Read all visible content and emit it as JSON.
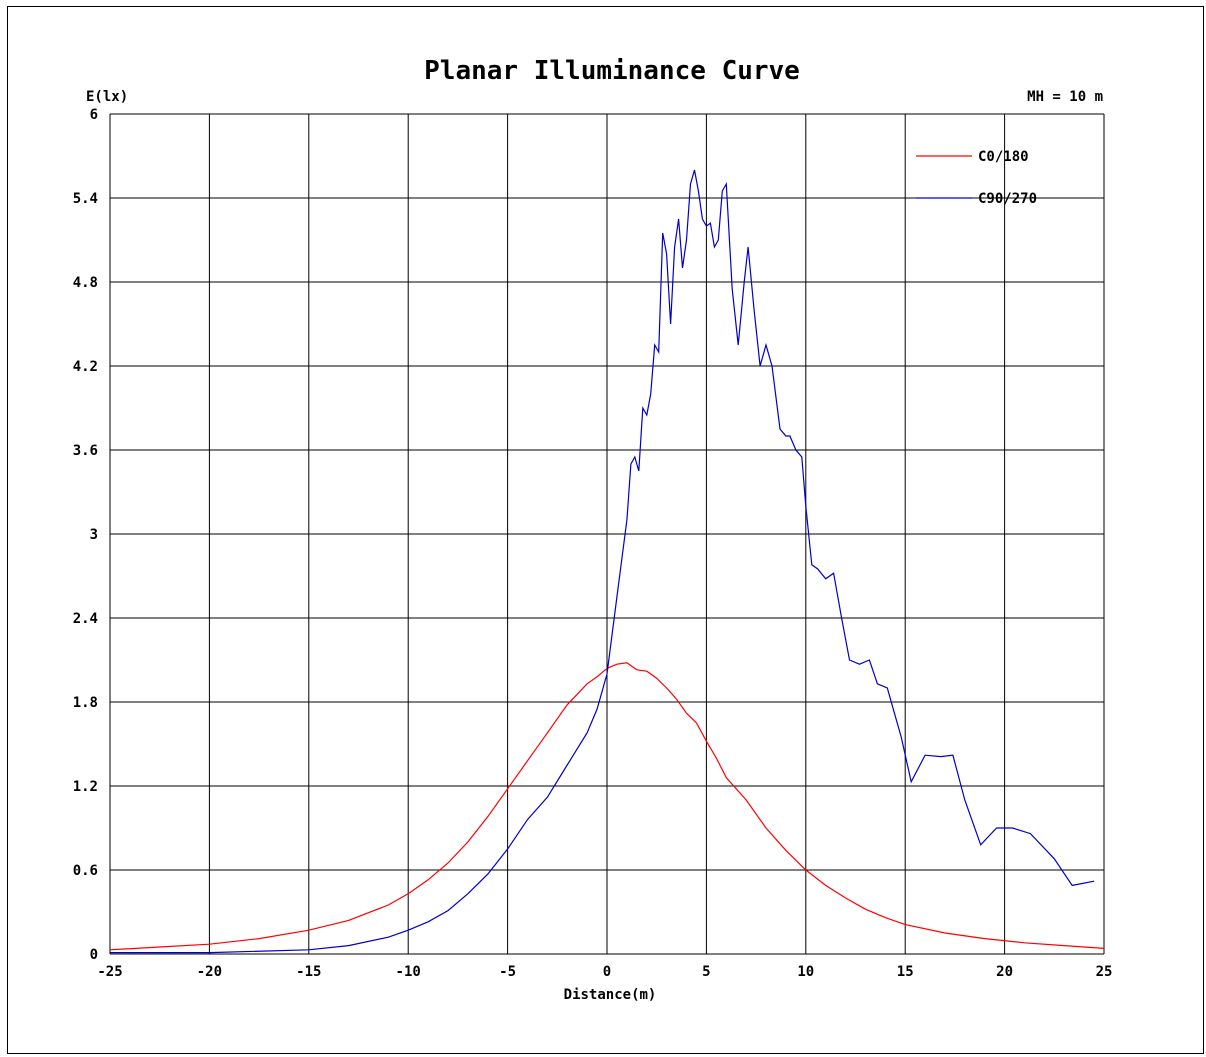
{
  "chart_data": {
    "type": "line",
    "title": "Planar Illuminance Curve",
    "ylabel": "E(lx)",
    "xlabel": "Distance(m)",
    "annotation": "MH = 10 m",
    "xlim": [
      -25,
      25
    ],
    "ylim": [
      0,
      6
    ],
    "xticks": [
      -25,
      -20,
      -15,
      -10,
      -5,
      0,
      5,
      10,
      15,
      20,
      25
    ],
    "yticks": [
      0,
      0.6,
      1.2,
      1.8,
      2.4,
      3,
      3.6,
      4.2,
      4.8,
      5.4,
      6
    ],
    "xtick_labels": [
      "-25",
      "-20",
      "-15",
      "-10",
      "-5",
      "0",
      "5",
      "10",
      "15",
      "20",
      "25"
    ],
    "ytick_labels": [
      "0",
      "0.6",
      "1.2",
      "1.8",
      "2.4",
      "3",
      "3.6",
      "4.2",
      "4.8",
      "5.4",
      "6"
    ],
    "grid": true,
    "legend_position": "top-right",
    "series": [
      {
        "name": "C0/180",
        "color": "#ff0000",
        "points": [
          [
            -25,
            0.03
          ],
          [
            -22.5,
            0.05
          ],
          [
            -20,
            0.07
          ],
          [
            -17.5,
            0.11
          ],
          [
            -15,
            0.17
          ],
          [
            -13,
            0.24
          ],
          [
            -11,
            0.35
          ],
          [
            -10,
            0.43
          ],
          [
            -9,
            0.53
          ],
          [
            -8,
            0.65
          ],
          [
            -7,
            0.8
          ],
          [
            -6,
            0.98
          ],
          [
            -5,
            1.18
          ],
          [
            -4,
            1.38
          ],
          [
            -3,
            1.58
          ],
          [
            -2,
            1.78
          ],
          [
            -1,
            1.93
          ],
          [
            -0.5,
            1.98
          ],
          [
            0,
            2.04
          ],
          [
            0.5,
            2.07
          ],
          [
            1,
            2.08
          ],
          [
            1.5,
            2.03
          ],
          [
            2,
            2.02
          ],
          [
            2.5,
            1.97
          ],
          [
            3,
            1.9
          ],
          [
            3.5,
            1.82
          ],
          [
            4,
            1.72
          ],
          [
            4.5,
            1.65
          ],
          [
            5,
            1.52
          ],
          [
            5.5,
            1.4
          ],
          [
            6,
            1.26
          ],
          [
            7,
            1.1
          ],
          [
            8,
            0.9
          ],
          [
            9,
            0.74
          ],
          [
            10,
            0.6
          ],
          [
            11,
            0.49
          ],
          [
            12,
            0.4
          ],
          [
            13,
            0.32
          ],
          [
            14,
            0.26
          ],
          [
            15,
            0.21
          ],
          [
            17,
            0.15
          ],
          [
            19,
            0.11
          ],
          [
            21,
            0.08
          ],
          [
            23,
            0.06
          ],
          [
            25,
            0.04
          ]
        ]
      },
      {
        "name": "C90/270",
        "color": "#0000cc",
        "points": [
          [
            -25,
            0.01
          ],
          [
            -20,
            0.01
          ],
          [
            -15,
            0.03
          ],
          [
            -13,
            0.06
          ],
          [
            -11,
            0.12
          ],
          [
            -10,
            0.17
          ],
          [
            -9,
            0.23
          ],
          [
            -8,
            0.31
          ],
          [
            -7,
            0.43
          ],
          [
            -6,
            0.57
          ],
          [
            -5,
            0.75
          ],
          [
            -4,
            0.96
          ],
          [
            -3,
            1.12
          ],
          [
            -2,
            1.35
          ],
          [
            -1,
            1.58
          ],
          [
            -0.5,
            1.75
          ],
          [
            0,
            2.0
          ],
          [
            0.5,
            2.55
          ],
          [
            1,
            3.1
          ],
          [
            1.2,
            3.5
          ],
          [
            1.4,
            3.55
          ],
          [
            1.6,
            3.45
          ],
          [
            1.8,
            3.9
          ],
          [
            2,
            3.85
          ],
          [
            2.2,
            4.0
          ],
          [
            2.4,
            4.35
          ],
          [
            2.6,
            4.3
          ],
          [
            2.8,
            5.15
          ],
          [
            3,
            5.0
          ],
          [
            3.2,
            4.5
          ],
          [
            3.4,
            5.05
          ],
          [
            3.6,
            5.25
          ],
          [
            3.8,
            4.9
          ],
          [
            4,
            5.1
          ],
          [
            4.2,
            5.5
          ],
          [
            4.4,
            5.6
          ],
          [
            4.6,
            5.45
          ],
          [
            4.8,
            5.25
          ],
          [
            5,
            5.2
          ],
          [
            5.2,
            5.22
          ],
          [
            5.4,
            5.05
          ],
          [
            5.6,
            5.1
          ],
          [
            5.8,
            5.45
          ],
          [
            6,
            5.5
          ],
          [
            6.3,
            4.75
          ],
          [
            6.6,
            4.35
          ],
          [
            6.9,
            4.8
          ],
          [
            7.1,
            5.05
          ],
          [
            7.4,
            4.6
          ],
          [
            7.7,
            4.2
          ],
          [
            8,
            4.35
          ],
          [
            8.3,
            4.2
          ],
          [
            8.7,
            3.75
          ],
          [
            9,
            3.7
          ],
          [
            9.2,
            3.7
          ],
          [
            9.5,
            3.6
          ],
          [
            9.8,
            3.55
          ],
          [
            10,
            3.2
          ],
          [
            10.3,
            2.78
          ],
          [
            10.6,
            2.75
          ],
          [
            11,
            2.68
          ],
          [
            11.4,
            2.72
          ],
          [
            11.8,
            2.4
          ],
          [
            12.2,
            2.1
          ],
          [
            12.7,
            2.07
          ],
          [
            13.2,
            2.1
          ],
          [
            13.6,
            1.93
          ],
          [
            14.1,
            1.9
          ],
          [
            14.8,
            1.55
          ],
          [
            15.3,
            1.23
          ],
          [
            16,
            1.42
          ],
          [
            16.8,
            1.41
          ],
          [
            17.4,
            1.42
          ],
          [
            18,
            1.1
          ],
          [
            18.8,
            0.78
          ],
          [
            19.6,
            0.9
          ],
          [
            20.4,
            0.9
          ],
          [
            21.3,
            0.86
          ],
          [
            22.5,
            0.68
          ],
          [
            23.4,
            0.49
          ],
          [
            24.5,
            0.52
          ]
        ]
      }
    ]
  }
}
